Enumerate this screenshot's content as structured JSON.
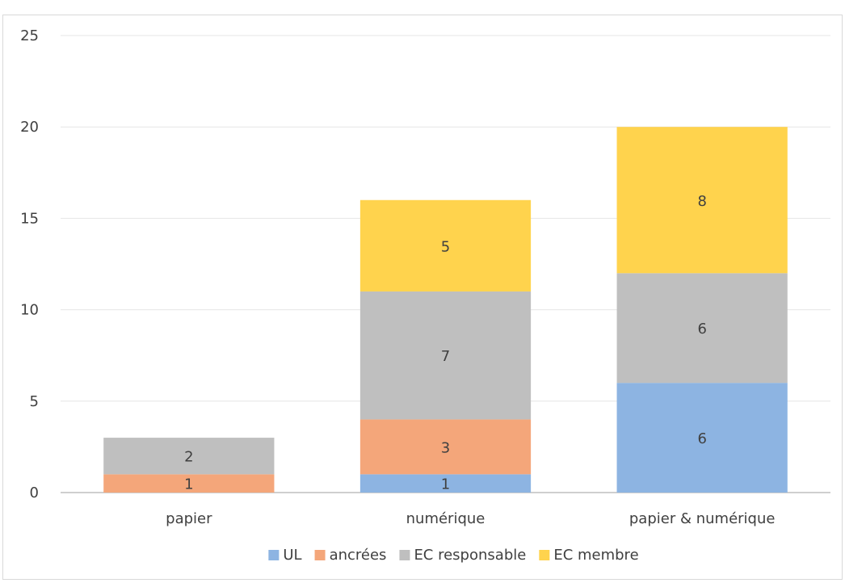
{
  "chart_data": {
    "type": "bar",
    "stacked": true,
    "categories": [
      "papier",
      "numérique",
      "papier & numérique"
    ],
    "series": [
      {
        "name": "UL",
        "values": [
          0,
          1,
          6
        ],
        "color": "#8db4e2"
      },
      {
        "name": "ancrées",
        "values": [
          1,
          3,
          0
        ],
        "color": "#f4a67a"
      },
      {
        "name": "EC responsable",
        "values": [
          2,
          7,
          6
        ],
        "color": "#bfbfbf"
      },
      {
        "name": "EC membre",
        "values": [
          0,
          5,
          8
        ],
        "color": "#ffd34d"
      }
    ],
    "ylim": [
      0,
      25
    ],
    "yticks": [
      0,
      5,
      10,
      15,
      20,
      25
    ],
    "grid": true,
    "legend": "bottom",
    "title": "",
    "xlabel": "",
    "ylabel": ""
  }
}
